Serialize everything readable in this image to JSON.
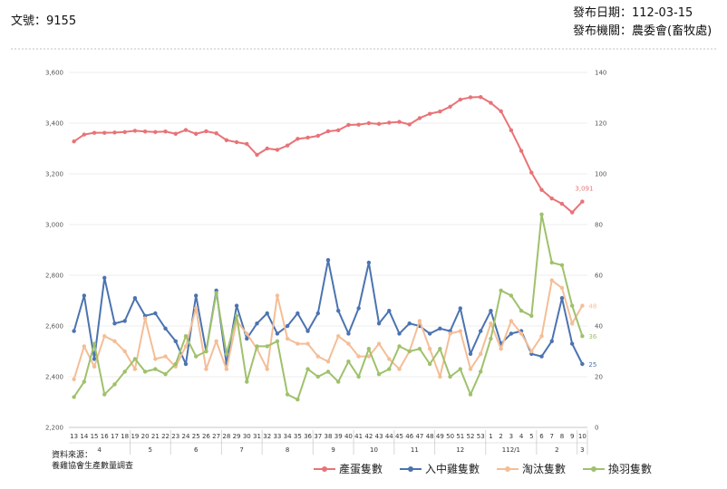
{
  "header": {
    "doc_no": "文號：9155",
    "pub_date": "發布日期：112-03-15",
    "pub_org": "發布機關：農委會(畜牧處)"
  },
  "source": {
    "line1": "資料來源：",
    "line2": "養雞協會生產數量調查"
  },
  "chart_data": {
    "type": "line",
    "title": "",
    "xlabel": "",
    "ylabel": "",
    "left_axis": {
      "ylim": [
        2200,
        3600
      ],
      "ticks": [
        "2,200",
        "2,400",
        "2,600",
        "2,800",
        "3,000",
        "3,200",
        "3,400",
        "3,600"
      ]
    },
    "right_axis": {
      "ylim": [
        0,
        140
      ],
      "ticks": [
        "0",
        "20",
        "40",
        "60",
        "80",
        "100",
        "120",
        "140"
      ]
    },
    "grid": true,
    "legend_position": "bottom",
    "x_weeks": [
      "13",
      "14",
      "15",
      "16",
      "17",
      "18",
      "19",
      "20",
      "21",
      "22",
      "23",
      "24",
      "25",
      "26",
      "27",
      "28",
      "29",
      "30",
      "31",
      "32",
      "33",
      "34",
      "35",
      "36",
      "37",
      "38",
      "39",
      "40",
      "41",
      "42",
      "43",
      "44",
      "45",
      "46",
      "47",
      "48",
      "49",
      "50",
      "51",
      "52",
      "53",
      "1",
      "2",
      "3",
      "4",
      "5",
      "6",
      "7",
      "8",
      "9",
      "10"
    ],
    "month_groups": [
      {
        "label": "4",
        "start": 0,
        "end": 5
      },
      {
        "label": "5",
        "start": 6,
        "end": 9
      },
      {
        "label": "6",
        "start": 10,
        "end": 14
      },
      {
        "label": "7",
        "start": 15,
        "end": 18
      },
      {
        "label": "8",
        "start": 19,
        "end": 23
      },
      {
        "label": "9",
        "start": 24,
        "end": 27
      },
      {
        "label": "10",
        "start": 28,
        "end": 31
      },
      {
        "label": "11",
        "start": 32,
        "end": 35
      },
      {
        "label": "12",
        "start": 36,
        "end": 40
      },
      {
        "label": "112/1",
        "start": 41,
        "end": 45
      },
      {
        "label": "2",
        "start": 46,
        "end": 49
      },
      {
        "label": "3",
        "start": 50,
        "end": 50
      }
    ],
    "series": [
      {
        "name": "產蛋隻數",
        "axis": "left",
        "color": "#e87377",
        "end_label": "3,091",
        "values": [
          3328,
          3355,
          3362,
          3362,
          3363,
          3365,
          3370,
          3367,
          3365,
          3367,
          3358,
          3373,
          3358,
          3368,
          3360,
          3333,
          3325,
          3318,
          3275,
          3300,
          3295,
          3312,
          3338,
          3343,
          3350,
          3368,
          3372,
          3393,
          3394,
          3400,
          3397,
          3402,
          3405,
          3395,
          3420,
          3437,
          3446,
          3465,
          3493,
          3502,
          3503,
          3480,
          3447,
          3372,
          3291,
          3205,
          3137,
          3103,
          3082,
          3048,
          3091
        ]
      },
      {
        "name": "入中雞隻數",
        "axis": "right",
        "color": "#4b73b0",
        "end_label": "25",
        "values": [
          38,
          52,
          27,
          59,
          41,
          42,
          51,
          44,
          45,
          39,
          34,
          25,
          52,
          30,
          54,
          25,
          48,
          35,
          41,
          45,
          37,
          40,
          45,
          38,
          45,
          66,
          46,
          37,
          47,
          65,
          41,
          46,
          37,
          41,
          40,
          37,
          39,
          38,
          47,
          29,
          38,
          46,
          33,
          37,
          38,
          29,
          28,
          34,
          51,
          33,
          25
        ]
      },
      {
        "name": "淘汰隻數",
        "axis": "right",
        "color": "#f4be96",
        "end_label": "48",
        "values": [
          19,
          32,
          24,
          36,
          34,
          30,
          23,
          43,
          27,
          28,
          24,
          32,
          47,
          23,
          34,
          23,
          42,
          37,
          31,
          23,
          52,
          35,
          33,
          33,
          28,
          26,
          36,
          33,
          28,
          28,
          33,
          27,
          23,
          30,
          42,
          31,
          20,
          37,
          38,
          23,
          29,
          41,
          31,
          42,
          37,
          30,
          36,
          58,
          55,
          41,
          48
        ]
      },
      {
        "name": "換羽隻數",
        "axis": "right",
        "color": "#9fc16b",
        "end_label": "36",
        "values": [
          12,
          18,
          33,
          13,
          17,
          22,
          27,
          22,
          23,
          21,
          25,
          36,
          28,
          30,
          53,
          29,
          44,
          18,
          32,
          32,
          34,
          13,
          11,
          23,
          20,
          22,
          18,
          26,
          20,
          31,
          21,
          23,
          32,
          30,
          31,
          25,
          31,
          20,
          23,
          13,
          22,
          35,
          54,
          52,
          46,
          44,
          84,
          65,
          64,
          48,
          36
        ]
      }
    ]
  }
}
